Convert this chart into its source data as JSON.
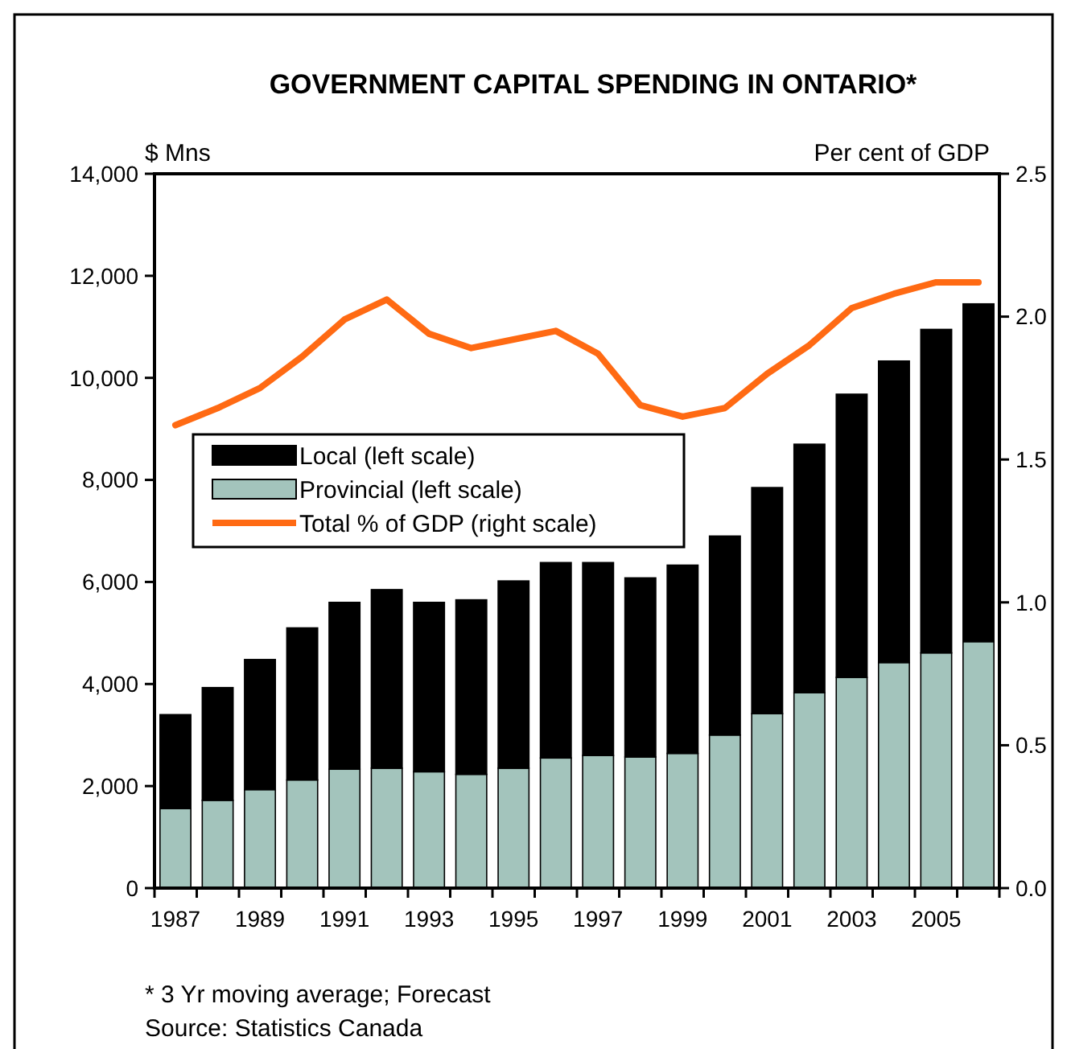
{
  "chart_data": {
    "type": "bar",
    "title": "GOVERNMENT CAPITAL SPENDING IN ONTARIO*",
    "ylabel": "$ Mns",
    "y2label": "Per cent of GDP",
    "categories": [
      "1987",
      null,
      "1989",
      null,
      "1991",
      null,
      "1993",
      null,
      "1995",
      null,
      "1997",
      null,
      "1999",
      null,
      "2001",
      null,
      "2003",
      null,
      "2005",
      null
    ],
    "stacked": true,
    "series": [
      {
        "name": "Provincial (left scale)",
        "color": "#a3c4bc",
        "values": [
          1560,
          1720,
          1930,
          2120,
          2330,
          2350,
          2280,
          2230,
          2350,
          2550,
          2600,
          2570,
          2640,
          3000,
          3420,
          3830,
          4130,
          4420,
          4610,
          4830
        ]
      },
      {
        "name": "Local (left scale)",
        "color": "#000000",
        "values": [
          1840,
          2210,
          2550,
          2980,
          3270,
          3500,
          3320,
          3420,
          3670,
          3830,
          3780,
          3510,
          3690,
          3900,
          4430,
          4870,
          5550,
          5910,
          6340,
          6620
        ]
      },
      {
        "name": "Total % of GDP (right scale)",
        "type": "line",
        "axis": "y2",
        "color": "#ff6a13",
        "values": [
          1.62,
          1.68,
          1.75,
          1.86,
          1.99,
          2.06,
          1.94,
          1.89,
          1.92,
          1.95,
          1.87,
          1.69,
          1.65,
          1.68,
          1.8,
          1.9,
          2.03,
          2.08,
          2.12,
          2.12
        ]
      }
    ],
    "ylim": [
      0,
      14000
    ],
    "yticks": [
      {
        "value": 0,
        "label": "0"
      },
      {
        "value": 2000,
        "label": "2,000"
      },
      {
        "value": 4000,
        "label": "4,000"
      },
      {
        "value": 6000,
        "label": "6,000"
      },
      {
        "value": 8000,
        "label": "8,000"
      },
      {
        "value": 10000,
        "label": "10,000"
      },
      {
        "value": 12000,
        "label": "12,000"
      },
      {
        "value": 14000,
        "label": "14,000"
      }
    ],
    "y2lim": [
      0,
      2.5
    ],
    "y2ticks": [
      {
        "value": 0,
        "label": "0.0"
      },
      {
        "value": 0.5,
        "label": "0.5"
      },
      {
        "value": 1,
        "label": "1.0"
      },
      {
        "value": 1.5,
        "label": "1.5"
      },
      {
        "value": 2,
        "label": "2.0"
      },
      {
        "value": 2.5,
        "label": "2.5"
      }
    ],
    "legend": "left",
    "grid": false,
    "annotations": [
      "* 3 Yr moving average; Forecast",
      "Source: Statistics Canada"
    ]
  }
}
